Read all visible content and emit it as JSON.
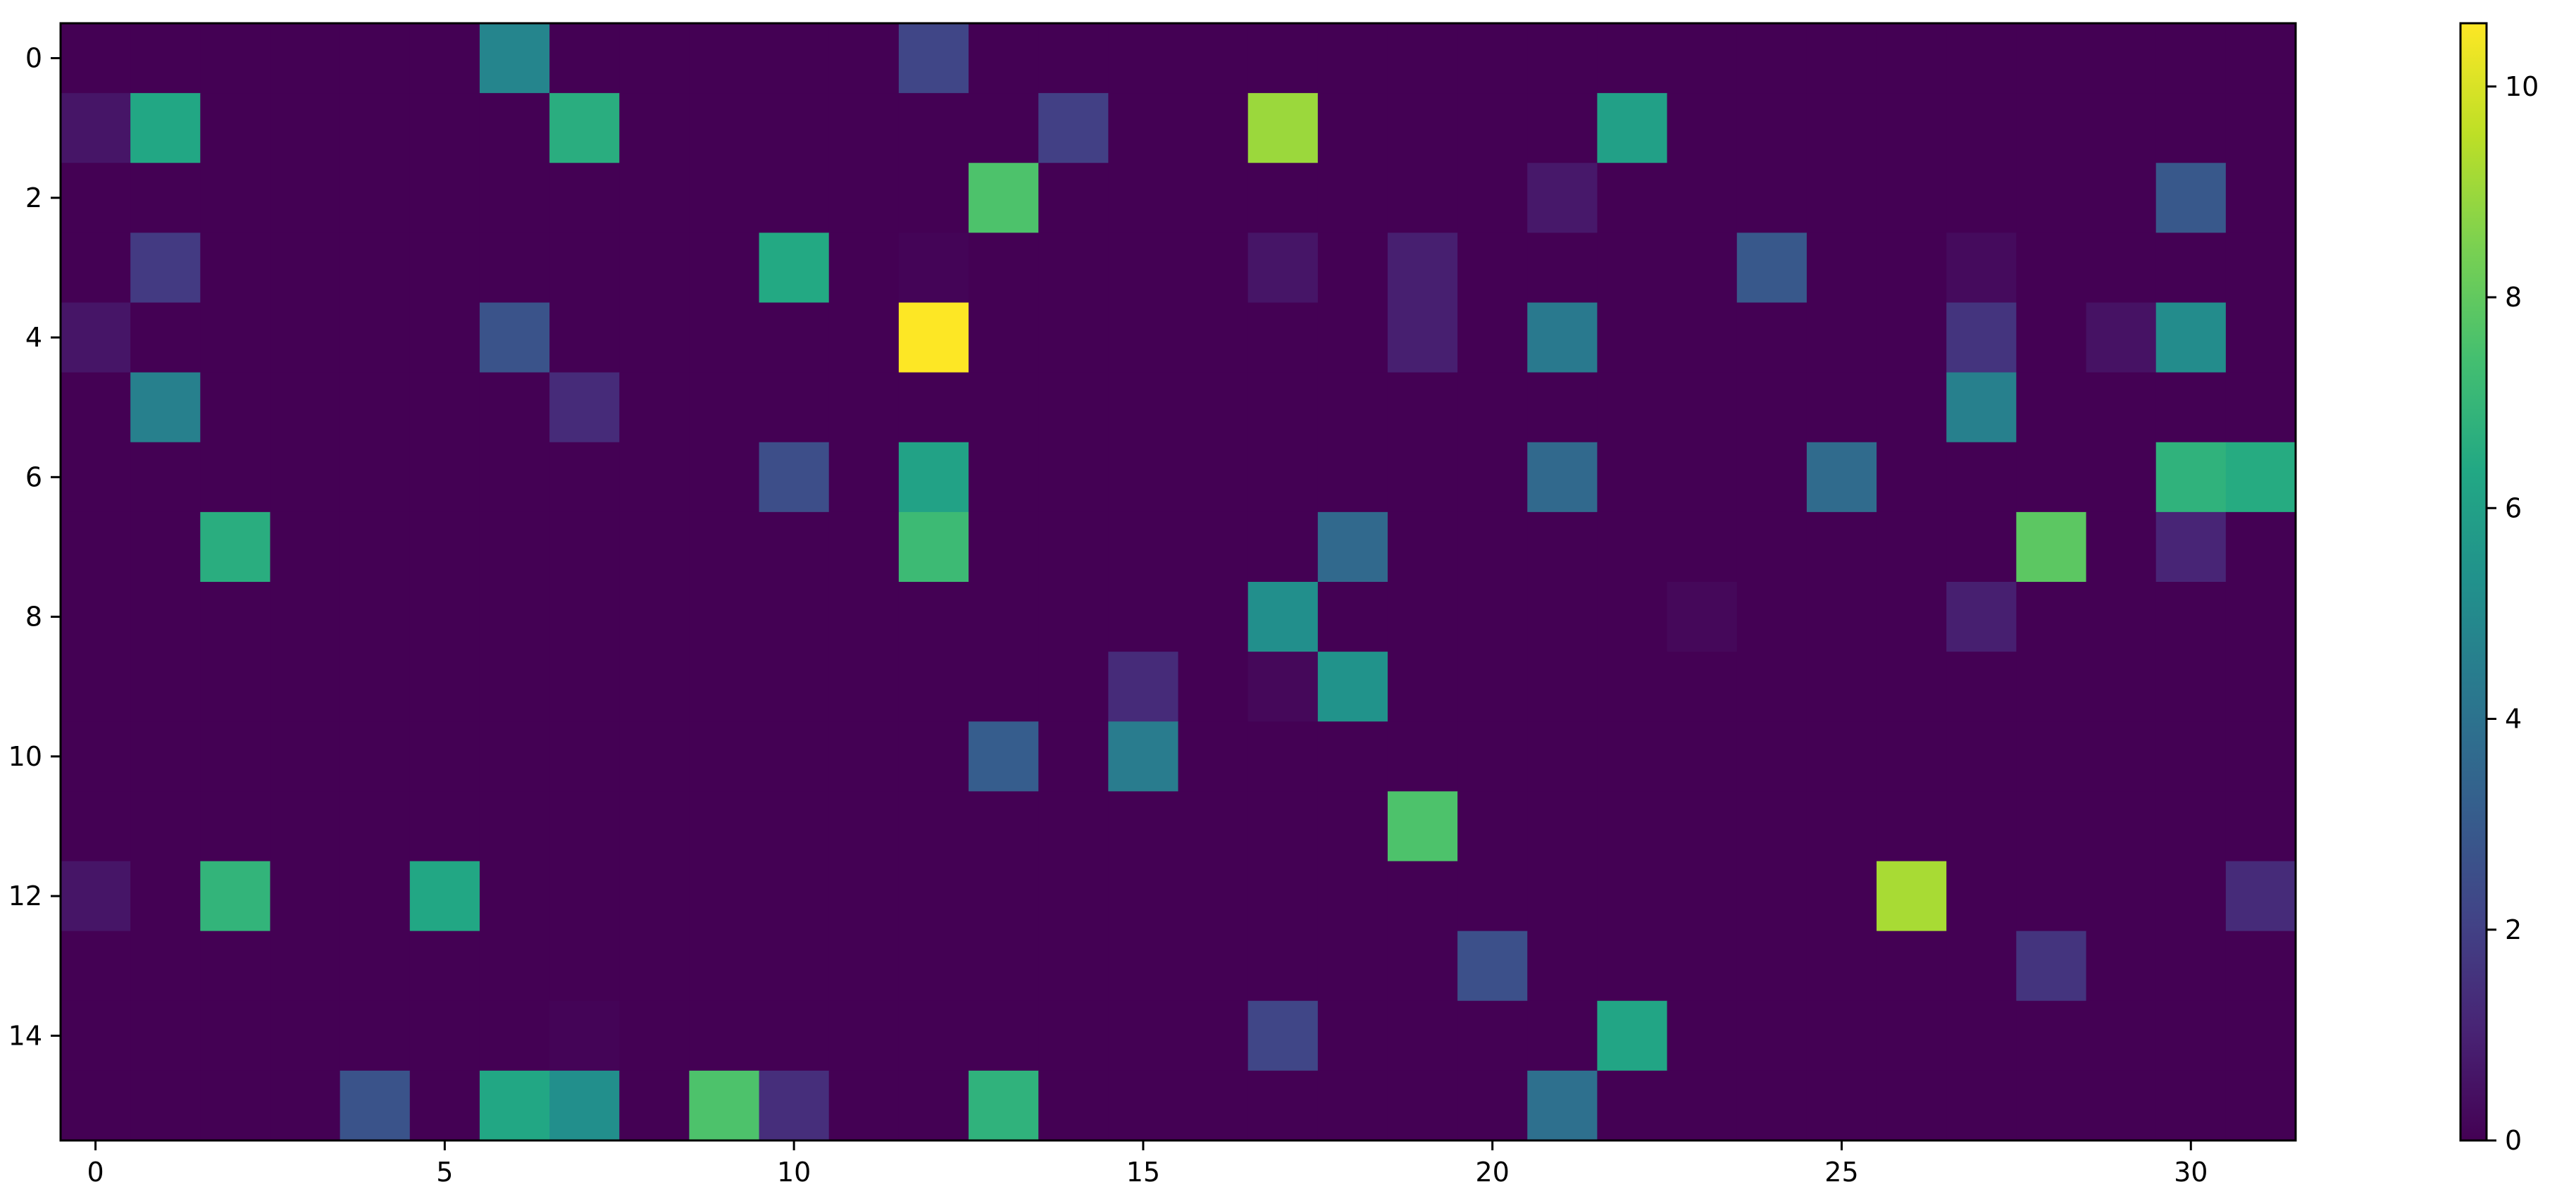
{
  "chart_data": {
    "type": "heatmap",
    "title": "",
    "xlabel": "",
    "ylabel": "",
    "rows": 16,
    "cols": 32,
    "colormap": "viridis",
    "x_ticks": [
      0,
      5,
      10,
      15,
      20,
      25,
      30
    ],
    "y_ticks": [
      0,
      2,
      4,
      6,
      8,
      10,
      12,
      14
    ],
    "colorbar": {
      "min": 0,
      "max": 10.6,
      "ticks": [
        0,
        2,
        4,
        6,
        8,
        10
      ]
    },
    "cells": [
      [
        0,
        6,
        4.8
      ],
      [
        0,
        12,
        2.2
      ],
      [
        1,
        0,
        0.6
      ],
      [
        1,
        1,
        6.3
      ],
      [
        1,
        7,
        6.6
      ],
      [
        1,
        14,
        2.0
      ],
      [
        1,
        17,
        9.0
      ],
      [
        1,
        22,
        6.0
      ],
      [
        2,
        13,
        7.6
      ],
      [
        2,
        21,
        0.7
      ],
      [
        2,
        30,
        2.9
      ],
      [
        3,
        1,
        1.8
      ],
      [
        3,
        10,
        6.4
      ],
      [
        3,
        12,
        0.1
      ],
      [
        3,
        17,
        0.6
      ],
      [
        3,
        19,
        0.9
      ],
      [
        3,
        24,
        2.9
      ],
      [
        3,
        27,
        0.3
      ],
      [
        4,
        0,
        0.6
      ],
      [
        4,
        6,
        2.7
      ],
      [
        4,
        12,
        10.6
      ],
      [
        4,
        19,
        0.9
      ],
      [
        4,
        21,
        4.3
      ],
      [
        4,
        27,
        1.6
      ],
      [
        4,
        29,
        0.5
      ],
      [
        4,
        30,
        5.1
      ],
      [
        5,
        1,
        4.6
      ],
      [
        5,
        7,
        1.3
      ],
      [
        5,
        27,
        4.6
      ],
      [
        6,
        10,
        2.5
      ],
      [
        6,
        12,
        6.1
      ],
      [
        6,
        21,
        3.6
      ],
      [
        6,
        25,
        3.7
      ],
      [
        6,
        30,
        6.8
      ],
      [
        6,
        31,
        6.5
      ],
      [
        7,
        2,
        6.6
      ],
      [
        7,
        12,
        7.2
      ],
      [
        7,
        18,
        3.6
      ],
      [
        7,
        28,
        7.9
      ],
      [
        7,
        30,
        1.1
      ],
      [
        8,
        17,
        5.2
      ],
      [
        8,
        23,
        0.2
      ],
      [
        8,
        27,
        0.9
      ],
      [
        9,
        15,
        1.3
      ],
      [
        9,
        17,
        0.2
      ],
      [
        9,
        18,
        5.4
      ],
      [
        10,
        13,
        3.1
      ],
      [
        10,
        15,
        4.4
      ],
      [
        11,
        19,
        7.6
      ],
      [
        12,
        0,
        0.6
      ],
      [
        12,
        2,
        6.9
      ],
      [
        12,
        5,
        6.3
      ],
      [
        12,
        26,
        9.2
      ],
      [
        12,
        31,
        1.3
      ],
      [
        13,
        20,
        2.6
      ],
      [
        13,
        28,
        1.6
      ],
      [
        14,
        7,
        0.1
      ],
      [
        14,
        17,
        2.2
      ],
      [
        14,
        22,
        6.2
      ],
      [
        15,
        4,
        2.7
      ],
      [
        15,
        6,
        6.3
      ],
      [
        15,
        7,
        5.2
      ],
      [
        15,
        9,
        7.6
      ],
      [
        15,
        10,
        1.4
      ],
      [
        15,
        13,
        6.8
      ],
      [
        15,
        21,
        3.9
      ]
    ]
  }
}
